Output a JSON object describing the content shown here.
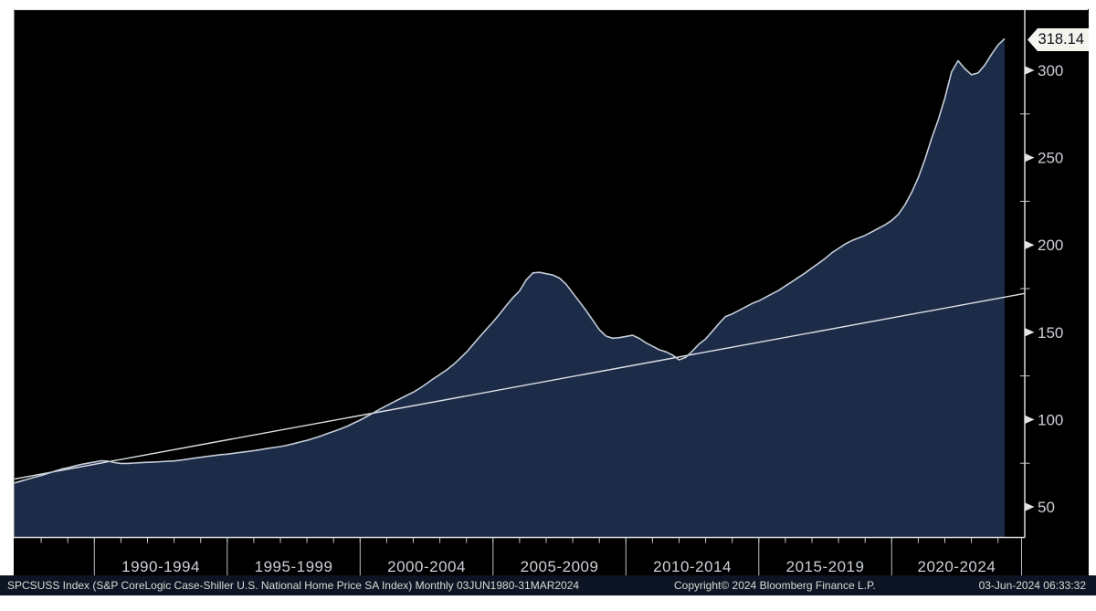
{
  "footer": {
    "description": "SPCSUSS Index (S&P CoreLogic Case-Shiller U.S. National Home Price SA Index)  Monthly 03JUN1980-31MAR2024",
    "copyright": "Copyright© 2024 Bloomberg Finance L.P.",
    "timestamp": "03-Jun-2024 06:33:32"
  },
  "chart": {
    "last_price": "318.14",
    "background": "#000000",
    "area_fill": "#1c2b47",
    "line_color": "#c5cdd8",
    "trend_color": "#dde2e8",
    "axis_color": "#d9d9d9",
    "label_color": "#ccd0d6",
    "footer_bg": "#0d1524",
    "callout_bg": "#f4f4ef"
  },
  "chart_data": {
    "type": "area",
    "title": "S&P CoreLogic Case-Shiller U.S. National Home Price SA Index (SPCSUSS Index)",
    "grid": "off",
    "legend": "none",
    "x_axis": {
      "unit": "year",
      "xlim": [
        1987.0,
        2024.25
      ],
      "bucket_labels": [
        "1990-1994",
        "1995-1999",
        "2000-2004",
        "2005-2009",
        "2010-2014",
        "2015-2019",
        "2020-2024"
      ],
      "bucket_boundary_years": [
        1990,
        1995,
        2000,
        2005,
        2010,
        2015,
        2020
      ],
      "minor_tick_interval_years": 1
    },
    "y_axis": {
      "side": "right",
      "ticks": [
        50,
        100,
        150,
        200,
        250,
        300
      ],
      "minor_ticks": [
        75,
        125,
        175,
        225,
        275
      ],
      "ylim": [
        33,
        335
      ]
    },
    "last_value": 318.14,
    "series": [
      {
        "name": "SPCSUSS Index",
        "type": "area",
        "x_start": 1987.0,
        "x_step_years": 0.25,
        "values": [
          63.7,
          64.8,
          65.9,
          67.0,
          68.0,
          69.2,
          70.4,
          71.6,
          72.4,
          73.4,
          74.3,
          75.0,
          75.7,
          76.4,
          76.2,
          75.4,
          74.9,
          74.9,
          75.1,
          75.3,
          75.5,
          75.7,
          75.9,
          76.1,
          76.3,
          76.8,
          77.3,
          77.9,
          78.4,
          78.9,
          79.4,
          79.9,
          80.2,
          80.7,
          81.2,
          81.7,
          82.2,
          82.8,
          83.4,
          84.0,
          84.5,
          85.3,
          86.2,
          87.2,
          88.1,
          89.3,
          90.5,
          91.9,
          93.2,
          94.6,
          96.1,
          97.9,
          99.7,
          101.8,
          103.9,
          106.0,
          108.0,
          110.0,
          111.9,
          113.8,
          115.7,
          118.0,
          120.6,
          123.3,
          125.8,
          128.4,
          131.4,
          134.9,
          138.6,
          143.0,
          147.5,
          151.7,
          155.9,
          160.5,
          165.3,
          169.8,
          173.7,
          180.0,
          184.0,
          184.3,
          183.5,
          182.8,
          181.0,
          177.5,
          172.5,
          167.5,
          162.5,
          157.0,
          151.5,
          147.8,
          146.6,
          146.9,
          147.6,
          148.3,
          146.5,
          144.0,
          142.0,
          140.0,
          138.8,
          137.0,
          134.2,
          135.6,
          139.3,
          143.2,
          146.2,
          150.5,
          155.0,
          159.0,
          160.5,
          162.5,
          164.5,
          166.5,
          168.0,
          170.0,
          172.0,
          174.0,
          176.5,
          179.0,
          181.5,
          184.0,
          186.8,
          189.5,
          192.3,
          195.5,
          198.0,
          200.5,
          202.5,
          204.0,
          205.5,
          207.5,
          209.5,
          211.5,
          214.0,
          217.5,
          223.0,
          230.0,
          238.5,
          249.0,
          261.0,
          271.5,
          284.0,
          299.0,
          305.5,
          301.0,
          297.5,
          298.5,
          303.0,
          309.0,
          314.5,
          318.14
        ]
      },
      {
        "name": "Trend Line",
        "type": "line",
        "x": [
          1987.0,
          2025.0
        ],
        "values": [
          66.0,
          172.2
        ]
      }
    ]
  }
}
